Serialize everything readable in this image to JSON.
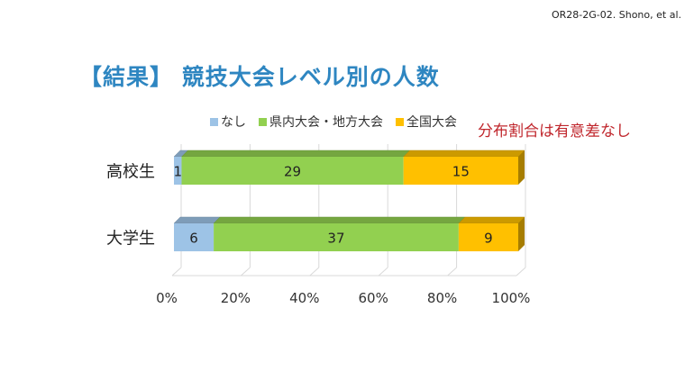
{
  "slide": {
    "ref": "OR28-2G-02. Shono, et al.",
    "title": "【結果】 競技大会レベル別の人数",
    "note": "分布割合は有意差なし"
  },
  "chart_data": {
    "type": "bar",
    "orientation": "horizontal",
    "stacked": "percent",
    "three_d": true,
    "categories": [
      "高校生",
      "大学生"
    ],
    "series": [
      {
        "name": "なし",
        "values": [
          1,
          6
        ],
        "color": "#9dc3e6"
      },
      {
        "name": "県内大会・地方大会",
        "values": [
          29,
          37
        ],
        "color": "#92d050"
      },
      {
        "name": "全国大会",
        "values": [
          15,
          9
        ],
        "color": "#ffc000"
      }
    ],
    "x_ticks": [
      "0%",
      "20%",
      "40%",
      "60%",
      "80%",
      "100%"
    ],
    "xlim": [
      0,
      100
    ],
    "legend_position": "top",
    "grid": true
  }
}
